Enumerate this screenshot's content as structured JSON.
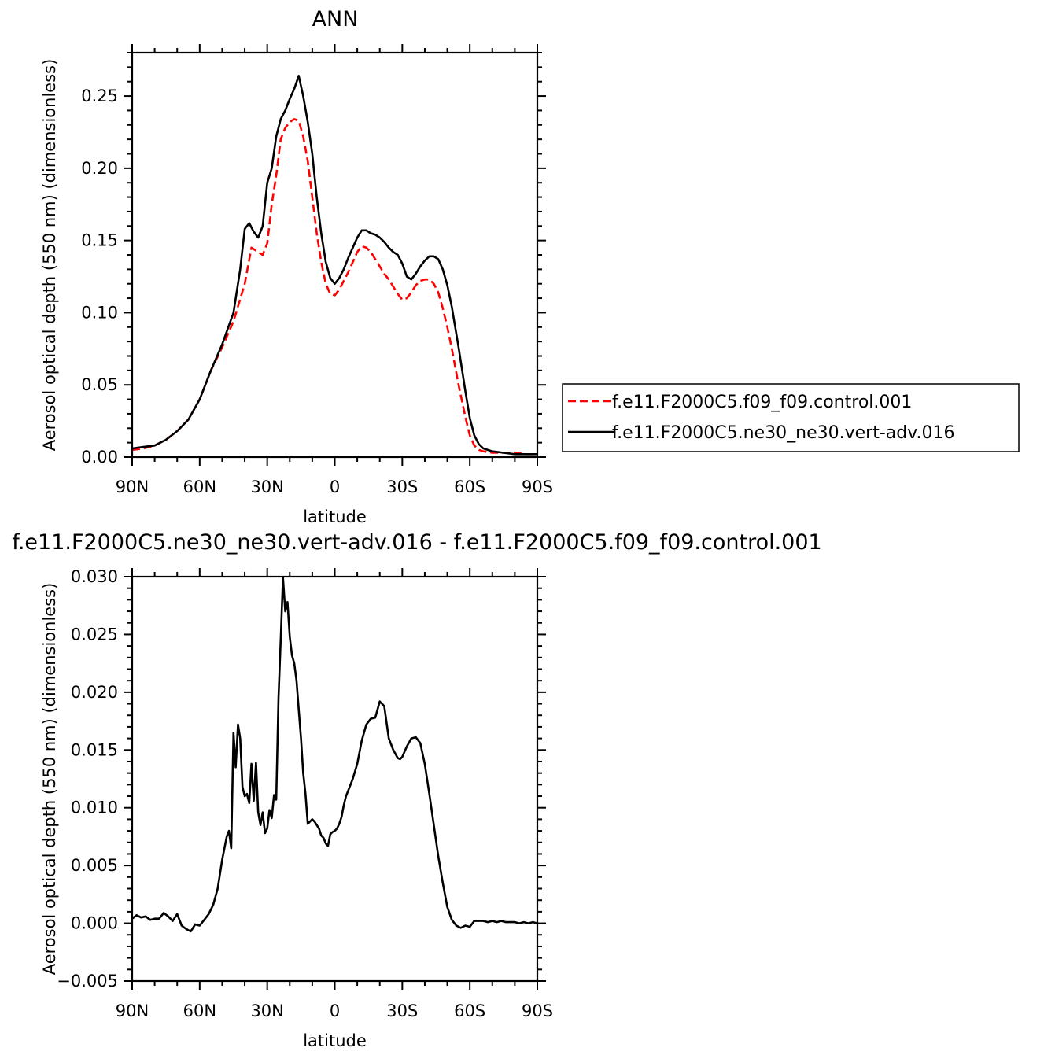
{
  "chart_data": [
    {
      "type": "line",
      "title": "ANN",
      "xlabel": "latitude",
      "ylabel": "Aerosol optical depth (550 nm) (dimensionless)",
      "xlim": [
        90,
        -90
      ],
      "ylim": [
        0,
        0.28
      ],
      "x_ticks": [
        90,
        60,
        30,
        0,
        -30,
        -60,
        -90
      ],
      "x_tick_labels": [
        "90N",
        "60N",
        "30N",
        "0",
        "30S",
        "60S",
        "90S"
      ],
      "y_ticks": [
        0,
        0.05,
        0.1,
        0.15,
        0.2,
        0.25
      ],
      "y_tick_labels": [
        "0.00",
        "0.05",
        "0.10",
        "0.15",
        "0.20",
        "0.25"
      ],
      "grid": false,
      "legend_position": "right",
      "series": [
        {
          "name": "f.e11.F2000C5.f09_f09.control.001",
          "color": "#ff0000",
          "dash": "dashed",
          "x": [
            90,
            85,
            80,
            75,
            70,
            65,
            60,
            55,
            50,
            45,
            40,
            37,
            35,
            32,
            30,
            28,
            26,
            24,
            22,
            20,
            18,
            16,
            14,
            12,
            10,
            8,
            6,
            4,
            2,
            0,
            -2,
            -4,
            -6,
            -8,
            -10,
            -12,
            -14,
            -16,
            -18,
            -20,
            -22,
            -24,
            -26,
            -28,
            -30,
            -32,
            -34,
            -36,
            -38,
            -40,
            -42,
            -44,
            -46,
            -48,
            -50,
            -52,
            -55,
            -58,
            -60,
            -62,
            -64,
            -66,
            -70,
            -75,
            -80,
            -85,
            -90
          ],
          "y": [
            0.005,
            0.006,
            0.008,
            0.012,
            0.018,
            0.026,
            0.04,
            0.06,
            0.076,
            0.094,
            0.12,
            0.145,
            0.143,
            0.14,
            0.148,
            0.175,
            0.195,
            0.22,
            0.228,
            0.232,
            0.234,
            0.233,
            0.222,
            0.205,
            0.18,
            0.155,
            0.135,
            0.12,
            0.113,
            0.112,
            0.116,
            0.122,
            0.128,
            0.135,
            0.142,
            0.146,
            0.145,
            0.142,
            0.137,
            0.132,
            0.127,
            0.123,
            0.118,
            0.113,
            0.109,
            0.11,
            0.114,
            0.119,
            0.122,
            0.123,
            0.123,
            0.12,
            0.114,
            0.103,
            0.09,
            0.075,
            0.05,
            0.028,
            0.015,
            0.008,
            0.005,
            0.004,
            0.003,
            0.003,
            0.003,
            0.002,
            0.002
          ]
        },
        {
          "name": "f.e11.F2000C5.ne30_ne30.vert-adv.016",
          "color": "#000000",
          "dash": "solid",
          "x": [
            90,
            85,
            80,
            75,
            70,
            65,
            60,
            55,
            50,
            45,
            42,
            40,
            38,
            36,
            34,
            32,
            30,
            28,
            26,
            24,
            22,
            20,
            18,
            16,
            14,
            12,
            10,
            8,
            6,
            4,
            2,
            0,
            -2,
            -4,
            -6,
            -8,
            -10,
            -12,
            -14,
            -16,
            -18,
            -20,
            -22,
            -24,
            -26,
            -28,
            -30,
            -32,
            -34,
            -36,
            -38,
            -40,
            -42,
            -44,
            -46,
            -48,
            -50,
            -52,
            -55,
            -58,
            -60,
            -62,
            -64,
            -66,
            -70,
            -75,
            -80,
            -85,
            -90
          ],
          "y": [
            0.006,
            0.007,
            0.008,
            0.012,
            0.018,
            0.026,
            0.04,
            0.06,
            0.078,
            0.1,
            0.13,
            0.158,
            0.162,
            0.156,
            0.152,
            0.16,
            0.19,
            0.2,
            0.222,
            0.234,
            0.24,
            0.248,
            0.255,
            0.264,
            0.25,
            0.232,
            0.21,
            0.18,
            0.155,
            0.135,
            0.124,
            0.12,
            0.124,
            0.13,
            0.138,
            0.145,
            0.152,
            0.157,
            0.157,
            0.155,
            0.154,
            0.152,
            0.149,
            0.145,
            0.142,
            0.14,
            0.134,
            0.125,
            0.123,
            0.127,
            0.132,
            0.136,
            0.139,
            0.139,
            0.137,
            0.13,
            0.119,
            0.104,
            0.076,
            0.046,
            0.027,
            0.015,
            0.009,
            0.006,
            0.004,
            0.003,
            0.002,
            0.002,
            0.002
          ]
        }
      ]
    },
    {
      "type": "line",
      "title": "f.e11.F2000C5.ne30_ne30.vert-adv.016 - f.e11.F2000C5.f09_f09.control.001",
      "xlabel": "latitude",
      "ylabel": "Aerosol optical depth (550 nm) (dimensionless)",
      "xlim": [
        90,
        -90
      ],
      "ylim": [
        -0.005,
        0.03
      ],
      "x_ticks": [
        90,
        60,
        30,
        0,
        -30,
        -60,
        -90
      ],
      "x_tick_labels": [
        "90N",
        "60N",
        "30N",
        "0",
        "30S",
        "60S",
        "90S"
      ],
      "y_ticks": [
        -0.005,
        0,
        0.005,
        0.01,
        0.015,
        0.02,
        0.025,
        0.03
      ],
      "y_tick_labels": [
        "-0.005",
        "0.000",
        "0.005",
        "0.010",
        "0.015",
        "0.020",
        "0.025",
        "0.030"
      ],
      "grid": false,
      "series": [
        {
          "color": "#000000",
          "dash": "solid",
          "x": [
            90,
            88,
            86,
            84,
            82,
            80,
            78,
            76,
            74,
            72,
            70,
            68,
            66,
            64,
            62,
            60,
            58,
            56,
            54,
            52,
            50,
            48,
            47,
            46,
            45,
            44,
            43,
            42,
            41,
            40,
            39,
            38,
            37,
            36,
            35,
            34,
            33,
            32,
            31,
            30,
            29,
            28,
            27,
            26,
            25,
            24,
            23,
            22,
            21,
            20,
            19,
            18,
            17,
            16,
            15,
            14,
            13,
            12,
            11,
            10,
            9,
            8,
            7,
            6,
            5,
            4,
            3,
            2,
            1,
            0,
            -1,
            -2,
            -3,
            -4,
            -5,
            -6,
            -8,
            -10,
            -12,
            -14,
            -16,
            -18,
            -20,
            -22,
            -24,
            -26,
            -28,
            -29,
            -30,
            -32,
            -34,
            -36,
            -38,
            -40,
            -42,
            -44,
            -46,
            -48,
            -50,
            -52,
            -54,
            -56,
            -58,
            -60,
            -62,
            -64,
            -66,
            -68,
            -70,
            -72,
            -74,
            -76,
            -78,
            -80,
            -82,
            -84,
            -86,
            -88,
            -90
          ],
          "y": [
            0.0004,
            0.0007,
            0.0005,
            0.0006,
            0.0003,
            0.0004,
            0.0004,
            0.0009,
            0.0006,
            0.0002,
            0.0008,
            -0.0002,
            -0.0005,
            -0.0007,
            -0.0001,
            -0.0002,
            0.0003,
            0.0008,
            0.0016,
            0.003,
            0.0055,
            0.0075,
            0.008,
            0.0065,
            0.0165,
            0.0135,
            0.0172,
            0.016,
            0.0118,
            0.011,
            0.0112,
            0.0104,
            0.0138,
            0.0106,
            0.0139,
            0.0096,
            0.0085,
            0.0096,
            0.0078,
            0.0082,
            0.0098,
            0.0091,
            0.0111,
            0.0107,
            0.0195,
            0.0245,
            0.0299,
            0.027,
            0.0278,
            0.0248,
            0.0232,
            0.0225,
            0.021,
            0.0185,
            0.016,
            0.013,
            0.0112,
            0.0086,
            0.0088,
            0.009,
            0.0088,
            0.0085,
            0.0082,
            0.0076,
            0.0074,
            0.0069,
            0.0067,
            0.0077,
            0.0079,
            0.008,
            0.0082,
            0.0086,
            0.0092,
            0.0102,
            0.011,
            0.0115,
            0.0125,
            0.0138,
            0.0158,
            0.0172,
            0.0177,
            0.0178,
            0.0192,
            0.0188,
            0.016,
            0.015,
            0.0143,
            0.0142,
            0.0144,
            0.0153,
            0.016,
            0.0161,
            0.0156,
            0.0138,
            0.0112,
            0.0085,
            0.0058,
            0.0035,
            0.0014,
            0.0003,
            -0.0002,
            -0.0004,
            -0.0002,
            -0.0003,
            0.0002,
            0.0002,
            0.0002,
            0.0001,
            0.0002,
            0.0001,
            0.0002,
            0.0001,
            0.0001,
            0.0001,
            0.0,
            0.0001,
            0.0,
            0.0001,
            0.0
          ]
        }
      ]
    }
  ]
}
